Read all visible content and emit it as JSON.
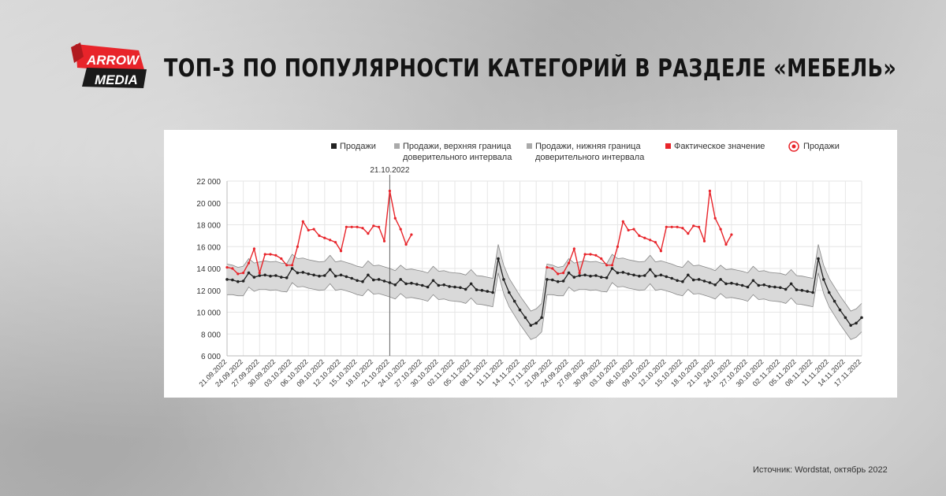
{
  "logo": {
    "line1": "ARROW",
    "line2": "MEDIA",
    "colors": {
      "red": "#e8242a",
      "black": "#1a1a1a"
    }
  },
  "header": {
    "title": "ТОП-3 ПО ПОПУЛЯРНОСТИ КАТЕГОРИЙ В РАЗДЕЛЕ «МЕБЕЛЬ»"
  },
  "legend": {
    "sales": "Продажи",
    "upper": "Продажи, верхняя граница доверительного интервала",
    "lower": "Продажи, нижняя граница доверительного интервала",
    "actual": "Фактическое значение",
    "sales_marker": "Продажи"
  },
  "colors": {
    "forecast": "#222222",
    "band": "#d9d9d9",
    "band_edge": "#888888",
    "actual": "#e8242a",
    "grid": "#e6e6e6"
  },
  "chart_data": {
    "type": "line",
    "title": "",
    "xlabel": "",
    "ylabel": "",
    "ylim": [
      6000,
      22000
    ],
    "y_ticks": [
      "6 000",
      "8 000",
      "10 000",
      "12 000",
      "14 000",
      "16 000",
      "18 000",
      "20 000",
      "22 000"
    ],
    "y_tick_values": [
      6000,
      8000,
      10000,
      12000,
      14000,
      16000,
      18000,
      20000,
      22000
    ],
    "x_tick_labels": [
      "21.09.2022",
      "24.09.2022",
      "27.09.2022",
      "30.09.2022",
      "03.10.2022",
      "06.10.2022",
      "09.10.2022",
      "12.10.2022",
      "15.10.2022",
      "18.10.2022",
      "21.10.2022",
      "24.10.2022",
      "27.10.2022",
      "30.10.2022",
      "02.11.2022",
      "05.11.2022",
      "08.11.2022",
      "11.11.2022",
      "14.11.2022",
      "17.11.2022",
      "21.09.2022",
      "24.09.2022",
      "27.09.2022",
      "30.09.2022",
      "03.10.2022",
      "06.10.2022",
      "09.10.2022",
      "12.10.2022",
      "15.10.2022",
      "18.10.2022",
      "21.10.2022",
      "24.10.2022",
      "27.10.2022",
      "30.10.2022",
      "02.11.2022",
      "05.11.2022",
      "08.11.2022",
      "11.11.2022",
      "14.11.2022",
      "17.11.2022"
    ],
    "vertical_marker": {
      "label": "21.10.2022",
      "index": 30
    },
    "grid": true,
    "legend_position": "top",
    "series": [
      {
        "name": "Продажи",
        "values": [
          13000,
          12950,
          12800,
          12850,
          13600,
          13200,
          13350,
          13400,
          13300,
          13350,
          13200,
          13150,
          14000,
          13600,
          13650,
          13500,
          13400,
          13300,
          13350,
          13900,
          13300,
          13400,
          13250,
          13100,
          12900,
          12800,
          13400,
          12950,
          13000,
          12850,
          12700,
          12500,
          13000,
          12600,
          12650,
          12550,
          12450,
          12300,
          12900,
          12450,
          12500,
          12350,
          12300,
          12250,
          12100,
          12600,
          12050,
          12000,
          11900,
          11800,
          14900,
          13000,
          11800,
          11000,
          10200,
          9500,
          8800,
          9000,
          9500,
          13000,
          12950,
          12800,
          12850,
          13600,
          13200,
          13350,
          13400,
          13300,
          13350,
          13200,
          13150,
          14000,
          13600,
          13650,
          13500,
          13400,
          13300,
          13350,
          13900,
          13300,
          13400,
          13250,
          13100,
          12900,
          12800,
          13400,
          12950,
          13000,
          12850,
          12700,
          12500,
          13000,
          12600,
          12650,
          12550,
          12450,
          12300,
          12900,
          12450,
          12500,
          12350,
          12300,
          12250,
          12100,
          12600,
          12050,
          12000,
          11900,
          11800,
          14900,
          13000,
          11800,
          11000,
          10200,
          9500,
          8800,
          9000,
          9500
        ]
      },
      {
        "name": "Продажи, верхняя граница доверительного интервала",
        "values": [
          14400,
          14300,
          14100,
          14200,
          14900,
          14500,
          14600,
          14700,
          14600,
          14650,
          14500,
          14450,
          15300,
          14900,
          14950,
          14800,
          14700,
          14600,
          14650,
          15200,
          14600,
          14700,
          14550,
          14400,
          14200,
          14100,
          14700,
          14250,
          14300,
          14150,
          14000,
          13800,
          14300,
          13900,
          13950,
          13850,
          13750,
          13600,
          14200,
          13750,
          13800,
          13650,
          13600,
          13550,
          13400,
          13900,
          13350,
          13300,
          13200,
          13100,
          16200,
          14300,
          13100,
          12300,
          11500,
          10800,
          10100,
          10300,
          10800,
          14400,
          14300,
          14100,
          14200,
          14900,
          14500,
          14600,
          14700,
          14600,
          14650,
          14500,
          14450,
          15300,
          14900,
          14950,
          14800,
          14700,
          14600,
          14650,
          15200,
          14600,
          14700,
          14550,
          14400,
          14200,
          14100,
          14700,
          14250,
          14300,
          14150,
          14000,
          13800,
          14300,
          13900,
          13950,
          13850,
          13750,
          13600,
          14200,
          13750,
          13800,
          13650,
          13600,
          13550,
          13400,
          13900,
          13350,
          13300,
          13200,
          13100,
          16200,
          14300,
          13100,
          12300,
          11500,
          10800,
          10100,
          10300,
          10800
        ]
      },
      {
        "name": "Продажи, нижняя граница доверительного интервала",
        "values": [
          11600,
          11600,
          11500,
          11500,
          12300,
          11900,
          12100,
          12100,
          12000,
          12050,
          11900,
          11850,
          12700,
          12300,
          12350,
          12200,
          12100,
          12000,
          12050,
          12600,
          12000,
          12100,
          11950,
          11800,
          11600,
          11500,
          12100,
          11650,
          11700,
          11550,
          11400,
          11200,
          11700,
          11300,
          11350,
          11250,
          11150,
          11000,
          11600,
          11150,
          11200,
          11050,
          11000,
          10950,
          10800,
          11300,
          10750,
          10700,
          10600,
          10500,
          13600,
          11700,
          10500,
          9700,
          8900,
          8200,
          7500,
          7700,
          8200,
          11600,
          11600,
          11500,
          11500,
          12300,
          11900,
          12100,
          12100,
          12000,
          12050,
          11900,
          11850,
          12700,
          12300,
          12350,
          12200,
          12100,
          12000,
          12050,
          12600,
          12000,
          12100,
          11950,
          11800,
          11600,
          11500,
          12100,
          11650,
          11700,
          11550,
          11400,
          11200,
          11700,
          11300,
          11350,
          11250,
          11150,
          11000,
          11600,
          11150,
          11200,
          11050,
          11000,
          10950,
          10800,
          11300,
          10750,
          10700,
          10600,
          10500,
          13600,
          11700,
          10500,
          9700,
          8900,
          8200,
          7500,
          7700,
          8200
        ]
      },
      {
        "name": "Фактическое значение",
        "segments": [
          {
            "start_index": 0,
            "values": [
              14100,
              14000,
              13500,
              13600,
              14500,
              15800,
              13600,
              15300,
              15300,
              15200,
              14900,
              14300,
              14300,
              16000,
              18300,
              17500,
              17600,
              17000,
              16800,
              16600,
              16400,
              15600,
              17800,
              17800,
              17800,
              17700,
              17200,
              17900,
              17800,
              16500,
              21100,
              18600,
              17600,
              16200,
              17100
            ]
          },
          {
            "start_index": 59,
            "values": [
              14100,
              14000,
              13500,
              13600,
              14500,
              15800,
              13600,
              15300,
              15300,
              15200,
              14900,
              14300,
              14300,
              16000,
              18300,
              17500,
              17600,
              17000,
              16800,
              16600,
              16400,
              15600,
              17800,
              17800,
              17800,
              17700,
              17200,
              17900,
              17800,
              16500,
              21100,
              18600,
              17600,
              16200,
              17100
            ]
          }
        ]
      }
    ]
  },
  "source": {
    "text": "Источник: Wordstat, октябрь 2022"
  }
}
